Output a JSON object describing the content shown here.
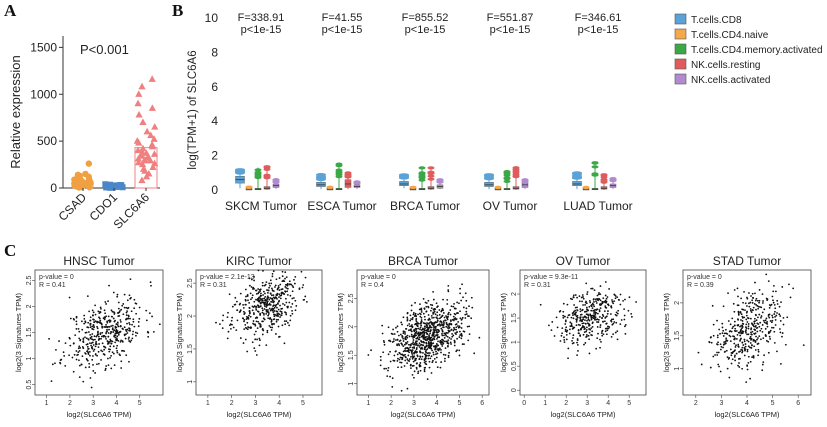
{
  "panel_labels": {
    "a": "A",
    "b": "B",
    "c": "C"
  },
  "chart_data": [
    {
      "type": "scatter",
      "panel": "A",
      "ylabel": "Relative expression",
      "annotation": "P<0.001",
      "ylim": [
        0,
        1600
      ],
      "yticks": [
        0,
        500,
        1000,
        1500
      ],
      "categories": [
        "CSAD",
        "CDO1",
        "SLC6A6"
      ],
      "colors": [
        "#f0a040",
        "#4a86c8",
        "#f08080"
      ],
      "markers": [
        "circle",
        "square",
        "triangle"
      ],
      "means": [
        55,
        18,
        430
      ],
      "values": [
        [
          5,
          10,
          15,
          20,
          25,
          30,
          35,
          40,
          45,
          50,
          55,
          60,
          65,
          70,
          75,
          80,
          90,
          100,
          110,
          130,
          150,
          260,
          12,
          22,
          32,
          42,
          52,
          62,
          72,
          8,
          18,
          28,
          38,
          48,
          58,
          68,
          78,
          88,
          120,
          140
        ],
        [
          2,
          5,
          8,
          10,
          12,
          15,
          18,
          20,
          22,
          25,
          28,
          30,
          35,
          40,
          6,
          14,
          24,
          32
        ],
        [
          80,
          120,
          150,
          180,
          200,
          220,
          250,
          270,
          290,
          300,
          310,
          320,
          340,
          360,
          380,
          400,
          420,
          440,
          460,
          480,
          500,
          520,
          560,
          600,
          650,
          700,
          780,
          850,
          900,
          1000,
          1080,
          1160,
          330,
          350,
          370,
          290,
          260
        ]
      ]
    },
    {
      "type": "box",
      "panel": "B",
      "ylabel": "log(TPM+1) of SLC6A6",
      "ylim": [
        0,
        10
      ],
      "yticks": [
        0,
        2,
        4,
        6,
        8,
        10
      ],
      "categories": [
        "SKCM Tumor",
        "ESCA Tumor",
        "BRCA Tumor",
        "OV Tumor",
        "LUAD Tumor"
      ],
      "f_stats": [
        "F=338.91",
        "F=41.55",
        "F=855.52",
        "F=551.87",
        "F=346.61"
      ],
      "p_values": [
        "p<1e-15",
        "p<1e-15",
        "p<1e-15",
        "p<1e-15",
        "p<1e-15"
      ],
      "series": [
        {
          "name": "T.cells.CD8",
          "color": "#5ba3d6",
          "boxes": [
            [
              0.1,
              0.4,
              0.6,
              0.8,
              1.2
            ],
            [
              0.05,
              0.2,
              0.3,
              0.45,
              0.9
            ],
            [
              0.1,
              0.25,
              0.35,
              0.5,
              0.9
            ],
            [
              0.05,
              0.2,
              0.3,
              0.45,
              0.9
            ],
            [
              0.05,
              0.25,
              0.35,
              0.5,
              1.0
            ]
          ]
        },
        {
          "name": "T.cells.CD4.naive",
          "color": "#f5a84a",
          "boxes": [
            [
              0,
              0,
              0.05,
              0.1,
              0.2
            ],
            [
              0,
              0,
              0.05,
              0.1,
              0.2
            ],
            [
              0,
              0,
              0.05,
              0.1,
              0.2
            ],
            [
              0,
              0,
              0.05,
              0.1,
              0.2
            ],
            [
              0,
              0,
              0.05,
              0.1,
              0.2
            ]
          ]
        },
        {
          "name": "T.cells.CD4.memory.activated",
          "color": "#3aa845",
          "boxes": [
            [
              0,
              0.02,
              0.05,
              0.1,
              1.3
            ],
            [
              0,
              0.02,
              0.05,
              0.1,
              1.6
            ],
            [
              0,
              0.02,
              0.05,
              0.1,
              1.3
            ],
            [
              0,
              0.02,
              0.05,
              0.1,
              1.1
            ],
            [
              0,
              0.02,
              0.05,
              0.1,
              1.6
            ]
          ]
        },
        {
          "name": "NK.cells.resting",
          "color": "#e05c5c",
          "boxes": [
            [
              0,
              0.05,
              0.1,
              0.2,
              1.4
            ],
            [
              0.05,
              0.15,
              0.35,
              0.6,
              1.0
            ],
            [
              0,
              0.05,
              0.1,
              0.2,
              1.3
            ],
            [
              0,
              0.05,
              0.1,
              0.2,
              1.3
            ],
            [
              0,
              0.05,
              0.1,
              0.2,
              0.9
            ]
          ]
        },
        {
          "name": "NK.cells.activated",
          "color": "#b28ad0",
          "boxes": [
            [
              0.05,
              0.15,
              0.25,
              0.35,
              0.6
            ],
            [
              0.05,
              0.15,
              0.2,
              0.3,
              0.5
            ],
            [
              0.05,
              0.1,
              0.2,
              0.3,
              0.6
            ],
            [
              0.05,
              0.15,
              0.3,
              0.4,
              0.6
            ],
            [
              0.05,
              0.15,
              0.25,
              0.35,
              0.7
            ]
          ]
        }
      ]
    },
    {
      "type": "scatter",
      "panel": "C",
      "title": "HNSC Tumor",
      "xlabel": "log2(SLC6A6 TPM)",
      "ylabel": "log2(3 Signatures TPM)",
      "stats": [
        "p-value = 0",
        "R = 0.41"
      ],
      "xlim": [
        0.5,
        6
      ],
      "ylim": [
        0.3,
        2.7
      ],
      "xticks": [
        1,
        2,
        3,
        4,
        5
      ],
      "yticks": [
        0.5,
        1.0,
        1.5,
        2.0,
        2.5
      ],
      "cloud": {
        "n": 450,
        "x_mean": 3.5,
        "x_sd": 0.85,
        "y_mean": 1.5,
        "y_sd": 0.35,
        "r": 0.41,
        "seed": 11
      }
    },
    {
      "type": "scatter",
      "panel": "C",
      "title": "KIRC Tumor",
      "xlabel": "log2(SLC6A6 TPM)",
      "ylabel": "log2(3 Signatures TPM)",
      "stats": [
        "p-value = 2.1e-13",
        "R = 0.31"
      ],
      "xlim": [
        0.5,
        5.8
      ],
      "ylim": [
        0.8,
        2.7
      ],
      "xticks": [
        1,
        2,
        3,
        4,
        5
      ],
      "yticks": [
        1.0,
        1.5,
        2.0,
        2.5
      ],
      "cloud": {
        "n": 450,
        "x_mean": 3.4,
        "x_sd": 0.7,
        "y_mean": 2.15,
        "y_sd": 0.25,
        "r": 0.31,
        "seed": 23
      }
    },
    {
      "type": "scatter",
      "panel": "C",
      "title": "BRCA Tumor",
      "xlabel": "log2(SLC6A6 TPM)",
      "ylabel": "log2(3 Signatures TPM)",
      "stats": [
        "p-value = 0",
        "R = 0.4"
      ],
      "xlim": [
        0.5,
        6.3
      ],
      "ylim": [
        0.8,
        3.0
      ],
      "xticks": [
        1,
        2,
        3,
        4,
        5,
        6
      ],
      "yticks": [
        1.0,
        1.5,
        2.0,
        2.5
      ],
      "cloud": {
        "n": 850,
        "x_mean": 3.6,
        "x_sd": 0.8,
        "y_mean": 1.85,
        "y_sd": 0.3,
        "r": 0.4,
        "seed": 37
      }
    },
    {
      "type": "scatter",
      "panel": "C",
      "title": "OV Tumor",
      "xlabel": "log2(SLC6A6 TPM)",
      "ylabel": "log2(3 Signatures TPM)",
      "stats": [
        "p-value = 9.3e-11",
        "R = 0.31"
      ],
      "xlim": [
        -0.2,
        5.8
      ],
      "ylim": [
        -0.1,
        2.5
      ],
      "xticks": [
        0,
        1,
        2,
        3,
        4,
        5
      ],
      "yticks": [
        0.0,
        0.5,
        1.0,
        1.5,
        2.0
      ],
      "cloud": {
        "n": 380,
        "x_mean": 3.2,
        "x_sd": 0.8,
        "y_mean": 1.5,
        "y_sd": 0.3,
        "r": 0.31,
        "seed": 51
      }
    },
    {
      "type": "scatter",
      "panel": "C",
      "title": "STAD Tumor",
      "xlabel": "log2(SLC6A6 TPM)",
      "ylabel": "log2(3 Signatures TPM)",
      "stats": [
        "p-value = 0",
        "R = 0.39"
      ],
      "xlim": [
        1.5,
        6.5
      ],
      "ylim": [
        0.6,
        2.5
      ],
      "xticks": [
        2,
        3,
        4,
        5,
        6
      ],
      "yticks": [
        1.0,
        1.5,
        2.0
      ],
      "cloud": {
        "n": 420,
        "x_mean": 4.0,
        "x_sd": 0.65,
        "y_mean": 1.55,
        "y_sd": 0.3,
        "r": 0.39,
        "seed": 67
      }
    }
  ]
}
